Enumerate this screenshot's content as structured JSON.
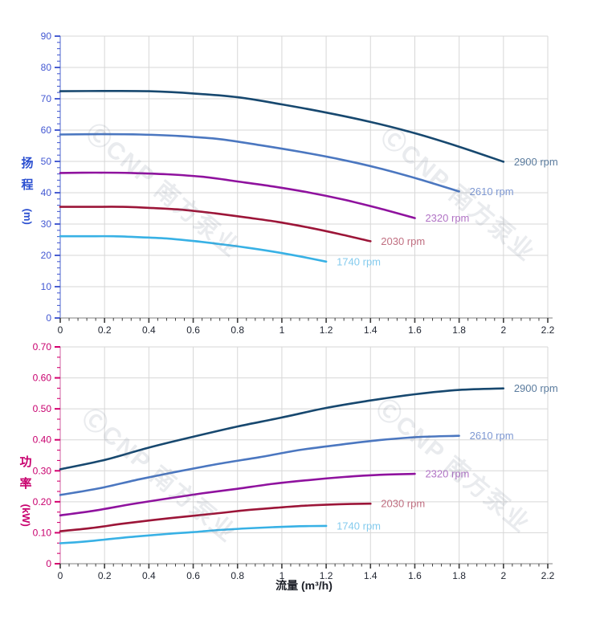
{
  "watermark": {
    "text": "ⒸCNP 南方泵业"
  },
  "chart_data": [
    {
      "id": "head-chart",
      "type": "line",
      "title": "",
      "ylabel_chars": [
        "扬",
        "程"
      ],
      "ylabel_unit": "(m)",
      "xlabel": "",
      "axis_line_color": "#6b7fd7",
      "tick_color": "#4a5fd2",
      "tick_label_color": "#4257d2",
      "x": {
        "min": 0,
        "max": 2.2,
        "major": 0.2,
        "minor_count": 4,
        "tick_labels": [
          "0",
          "0.2",
          "0.4",
          "0.6",
          "0.8",
          "1",
          "1.2",
          "1.4",
          "1.6",
          "1.8",
          "2",
          "2.2"
        ]
      },
      "y": {
        "min": 0,
        "max": 90,
        "major": 10,
        "minor_count": 4,
        "tick_labels": [
          "0",
          "10",
          "20",
          "30",
          "40",
          "50",
          "60",
          "70",
          "80",
          "90"
        ]
      },
      "grid": true,
      "legend_position": "inline-end",
      "series": [
        {
          "name": "2900 rpm",
          "color": "#17486f",
          "label_color": "#5b7c9e",
          "points": [
            [
              0,
              72.4
            ],
            [
              0.2,
              72.5
            ],
            [
              0.4,
              72.4
            ],
            [
              0.6,
              71.7
            ],
            [
              0.8,
              70.5
            ],
            [
              1.0,
              68.2
            ],
            [
              1.2,
              65.6
            ],
            [
              1.4,
              62.6
            ],
            [
              1.6,
              59.0
            ],
            [
              1.8,
              54.7
            ],
            [
              2.0,
              49.9
            ]
          ]
        },
        {
          "name": "2610 rpm",
          "color": "#4b77c0",
          "label_color": "#7e98d2",
          "points": [
            [
              0,
              58.6
            ],
            [
              0.18,
              58.7
            ],
            [
              0.36,
              58.6
            ],
            [
              0.54,
              58.1
            ],
            [
              0.72,
              57.1
            ],
            [
              0.9,
              55.2
            ],
            [
              1.08,
              53.1
            ],
            [
              1.26,
              50.7
            ],
            [
              1.44,
              47.8
            ],
            [
              1.62,
              44.3
            ],
            [
              1.8,
              40.4
            ]
          ]
        },
        {
          "name": "2320 rpm",
          "color": "#8f129e",
          "label_color": "#b173c5",
          "points": [
            [
              0,
              46.3
            ],
            [
              0.16,
              46.4
            ],
            [
              0.32,
              46.3
            ],
            [
              0.48,
              45.9
            ],
            [
              0.64,
              45.1
            ],
            [
              0.8,
              43.6
            ],
            [
              0.96,
              42.0
            ],
            [
              1.12,
              40.1
            ],
            [
              1.28,
              37.8
            ],
            [
              1.44,
              35.0
            ],
            [
              1.6,
              31.9
            ]
          ]
        },
        {
          "name": "2030 rpm",
          "color": "#9c1538",
          "label_color": "#c06f81",
          "points": [
            [
              0,
              35.5
            ],
            [
              0.14,
              35.5
            ],
            [
              0.28,
              35.5
            ],
            [
              0.42,
              35.1
            ],
            [
              0.56,
              34.5
            ],
            [
              0.7,
              33.4
            ],
            [
              0.84,
              32.1
            ],
            [
              0.98,
              30.7
            ],
            [
              1.12,
              28.9
            ],
            [
              1.26,
              26.8
            ],
            [
              1.4,
              24.5
            ]
          ]
        },
        {
          "name": "1740 rpm",
          "color": "#38b1e5",
          "label_color": "#84cbee",
          "points": [
            [
              0,
              26.1
            ],
            [
              0.12,
              26.1
            ],
            [
              0.24,
              26.1
            ],
            [
              0.36,
              25.8
            ],
            [
              0.48,
              25.4
            ],
            [
              0.6,
              24.6
            ],
            [
              0.72,
              23.6
            ],
            [
              0.84,
              22.5
            ],
            [
              0.96,
              21.2
            ],
            [
              1.08,
              19.7
            ],
            [
              1.2,
              18.0
            ]
          ]
        }
      ]
    },
    {
      "id": "power-chart",
      "type": "line",
      "title": "",
      "ylabel_chars": [
        "功",
        "率"
      ],
      "ylabel_unit": "(kW)",
      "xlabel": "流量 (m³/h)",
      "axis_line_color": "#d87ab0",
      "tick_color": "#d4006e",
      "tick_label_color": "#c8006e",
      "x": {
        "min": 0,
        "max": 2.2,
        "major": 0.2,
        "minor_count": 4,
        "tick_labels": [
          "0",
          "0.2",
          "0.4",
          "0.6",
          "0.8",
          "1",
          "1.2",
          "1.4",
          "1.6",
          "1.8",
          "2",
          "2.2"
        ]
      },
      "y": {
        "min": 0,
        "max": 0.7,
        "major": 0.1,
        "minor_count": 2,
        "tick_labels": [
          "0",
          "0.10",
          "0.20",
          "0.30",
          "0.40",
          "0.50",
          "0.60",
          "0.70"
        ]
      },
      "grid": true,
      "legend_position": "inline-end",
      "series": [
        {
          "name": "2900 rpm",
          "color": "#17486f",
          "label_color": "#5b7c9e",
          "points": [
            [
              0,
              0.305
            ],
            [
              0.2,
              0.335
            ],
            [
              0.4,
              0.375
            ],
            [
              0.6,
              0.41
            ],
            [
              0.8,
              0.443
            ],
            [
              1.0,
              0.472
            ],
            [
              1.2,
              0.503
            ],
            [
              1.4,
              0.527
            ],
            [
              1.6,
              0.547
            ],
            [
              1.8,
              0.561
            ],
            [
              2.0,
              0.566
            ]
          ]
        },
        {
          "name": "2610 rpm",
          "color": "#4b77c0",
          "label_color": "#7e98d2",
          "points": [
            [
              0,
              0.222
            ],
            [
              0.18,
              0.244
            ],
            [
              0.36,
              0.273
            ],
            [
              0.54,
              0.299
            ],
            [
              0.72,
              0.323
            ],
            [
              0.9,
              0.344
            ],
            [
              1.08,
              0.367
            ],
            [
              1.26,
              0.384
            ],
            [
              1.44,
              0.399
            ],
            [
              1.62,
              0.409
            ],
            [
              1.8,
              0.413
            ]
          ]
        },
        {
          "name": "2320 rpm",
          "color": "#8f129e",
          "label_color": "#b173c5",
          "points": [
            [
              0,
              0.156
            ],
            [
              0.16,
              0.172
            ],
            [
              0.32,
              0.192
            ],
            [
              0.48,
              0.21
            ],
            [
              0.64,
              0.227
            ],
            [
              0.8,
              0.242
            ],
            [
              0.96,
              0.258
            ],
            [
              1.12,
              0.27
            ],
            [
              1.28,
              0.28
            ],
            [
              1.44,
              0.287
            ],
            [
              1.6,
              0.29
            ]
          ]
        },
        {
          "name": "2030 rpm",
          "color": "#9c1538",
          "label_color": "#c06f81",
          "points": [
            [
              0,
              0.105
            ],
            [
              0.14,
              0.115
            ],
            [
              0.28,
              0.129
            ],
            [
              0.42,
              0.141
            ],
            [
              0.56,
              0.152
            ],
            [
              0.7,
              0.162
            ],
            [
              0.84,
              0.173
            ],
            [
              0.98,
              0.181
            ],
            [
              1.12,
              0.188
            ],
            [
              1.26,
              0.192
            ],
            [
              1.4,
              0.194
            ]
          ]
        },
        {
          "name": "1740 rpm",
          "color": "#38b1e5",
          "label_color": "#84cbee",
          "points": [
            [
              0,
              0.066
            ],
            [
              0.12,
              0.072
            ],
            [
              0.24,
              0.081
            ],
            [
              0.36,
              0.089
            ],
            [
              0.48,
              0.096
            ],
            [
              0.6,
              0.102
            ],
            [
              0.72,
              0.109
            ],
            [
              0.84,
              0.114
            ],
            [
              0.96,
              0.118
            ],
            [
              1.08,
              0.121
            ],
            [
              1.2,
              0.122
            ]
          ]
        }
      ]
    }
  ]
}
